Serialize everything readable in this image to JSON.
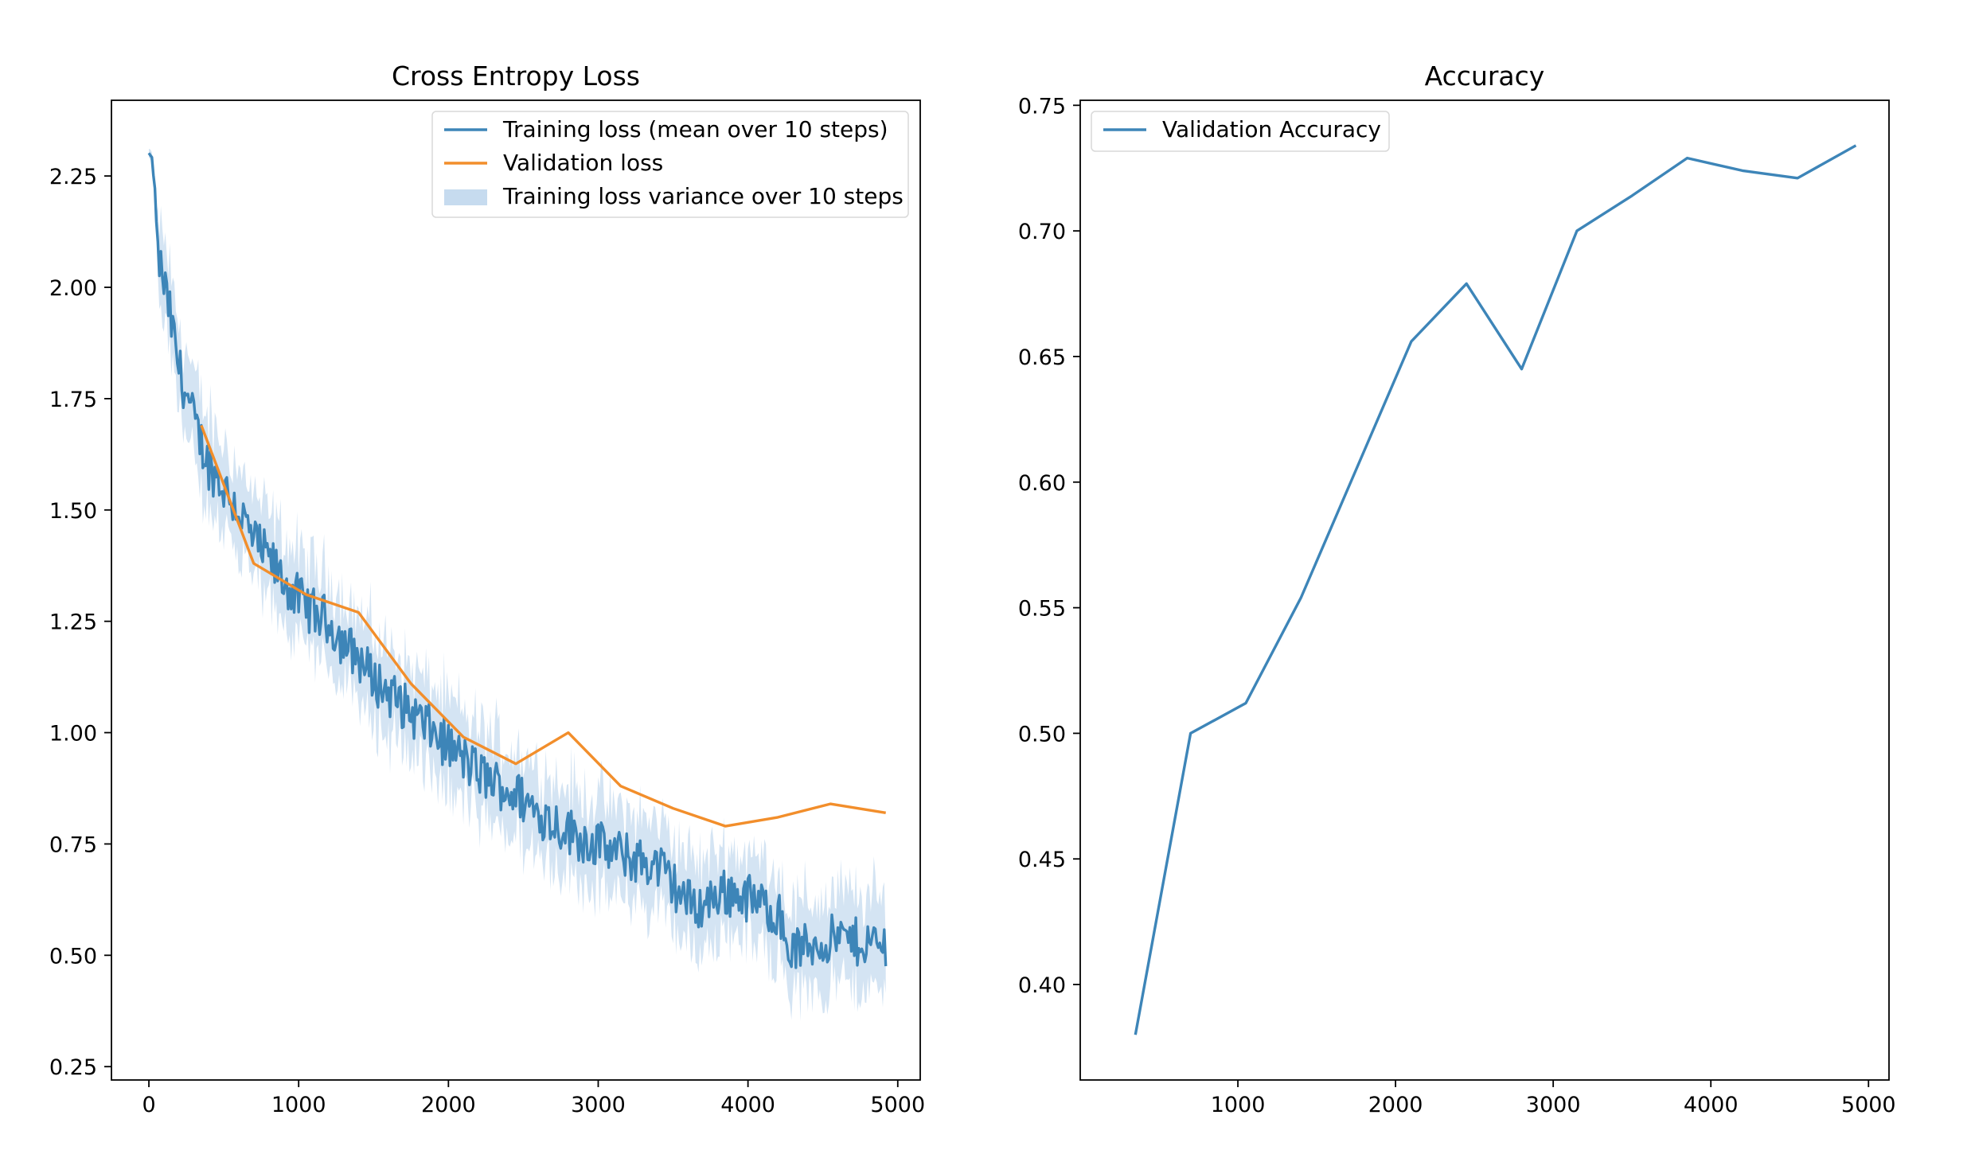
{
  "chart_data": [
    {
      "type": "line",
      "title": "Cross Entropy Loss",
      "xlabel": "",
      "ylabel": "",
      "xlim": [
        -250,
        5150
      ],
      "ylim": [
        0.22,
        2.42
      ],
      "xticks": [
        0,
        1000,
        2000,
        3000,
        4000,
        5000
      ],
      "yticks": [
        0.25,
        0.5,
        0.75,
        1.0,
        1.25,
        1.5,
        1.75,
        2.0,
        2.25
      ],
      "xtick_labels": [
        "0",
        "1000",
        "2000",
        "3000",
        "4000",
        "5000"
      ],
      "ytick_labels": [
        "0.25",
        "0.50",
        "0.75",
        "1.00",
        "1.25",
        "1.50",
        "1.75",
        "2.00",
        "2.25"
      ],
      "legend_position": "top-right",
      "train_anchor_x": [
        0,
        20,
        40,
        60,
        100,
        150,
        200,
        300,
        400,
        500,
        600,
        700,
        800,
        900,
        1000,
        1100,
        1200,
        1300,
        1400,
        1500,
        1600,
        1700,
        1800,
        1900,
        2000,
        2100,
        2200,
        2300,
        2400,
        2500,
        2600,
        2700,
        2800,
        2900,
        3000,
        3100,
        3200,
        3300,
        3400,
        3500,
        3600,
        3700,
        3800,
        3900,
        4000,
        4100,
        4200,
        4250,
        4300,
        4400,
        4500,
        4600,
        4700,
        4800,
        4900,
        4920
      ],
      "train_anchor_y": [
        2.3,
        2.29,
        2.22,
        2.07,
        2.01,
        1.92,
        1.82,
        1.7,
        1.6,
        1.55,
        1.5,
        1.43,
        1.39,
        1.34,
        1.3,
        1.27,
        1.25,
        1.2,
        1.17,
        1.12,
        1.09,
        1.06,
        1.03,
        1.0,
        0.97,
        0.94,
        0.91,
        0.89,
        0.87,
        0.85,
        0.82,
        0.8,
        0.78,
        0.76,
        0.75,
        0.73,
        0.72,
        0.71,
        0.7,
        0.66,
        0.62,
        0.61,
        0.64,
        0.64,
        0.63,
        0.61,
        0.6,
        0.53,
        0.51,
        0.52,
        0.53,
        0.54,
        0.53,
        0.53,
        0.52,
        0.53
      ],
      "series": [
        {
          "name": "Training loss (mean over 10 steps)",
          "color": "#3d85b8",
          "x_range": [
            0,
            4920
          ],
          "x_step": 10
        },
        {
          "name": "Validation loss",
          "color": "#f28e2b",
          "x": [
            350,
            700,
            1050,
            1400,
            1750,
            2100,
            2450,
            2800,
            3150,
            3500,
            3850,
            4200,
            4550,
            4920
          ],
          "y": [
            1.69,
            1.38,
            1.31,
            1.27,
            1.11,
            0.99,
            0.93,
            1.0,
            0.88,
            0.83,
            0.79,
            0.81,
            0.84,
            0.82
          ]
        },
        {
          "name": "Training loss variance over 10 steps",
          "color": "#c6dbef",
          "type": "band"
        }
      ]
    },
    {
      "type": "line",
      "title": "Accuracy",
      "xlabel": "",
      "ylabel": "",
      "xlim": [
        0,
        5130
      ],
      "ylim": [
        0.362,
        0.752
      ],
      "xticks": [
        1000,
        2000,
        3000,
        4000,
        5000
      ],
      "yticks": [
        0.4,
        0.45,
        0.5,
        0.55,
        0.6,
        0.65,
        0.7,
        0.75
      ],
      "xtick_labels": [
        "1000",
        "2000",
        "3000",
        "4000",
        "5000"
      ],
      "ytick_labels": [
        "0.40",
        "0.45",
        "0.50",
        "0.55",
        "0.60",
        "0.65",
        "0.70",
        "0.75"
      ],
      "legend_position": "top-left",
      "series": [
        {
          "name": "Validation Accuracy",
          "color": "#3d85b8",
          "x": [
            350,
            700,
            1050,
            1400,
            1750,
            2100,
            2450,
            2800,
            3150,
            3500,
            3850,
            4200,
            4550,
            4920
          ],
          "y": [
            0.38,
            0.5,
            0.512,
            0.554,
            0.605,
            0.656,
            0.679,
            0.645,
            0.7,
            0.714,
            0.729,
            0.724,
            0.721,
            0.734
          ]
        }
      ]
    }
  ]
}
